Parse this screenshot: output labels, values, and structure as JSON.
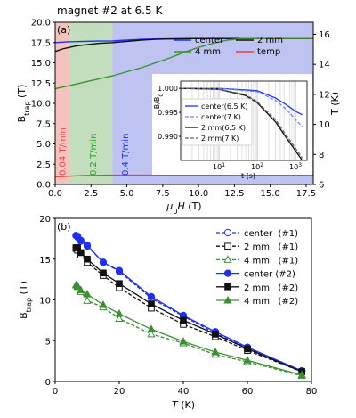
{
  "chart_data": [
    {
      "type": "line",
      "panel_label": "(a)",
      "title": "magnet #2 at 6.5 K",
      "xlabel": "μ0H (T)",
      "ylabel_left": "Btrap (T)",
      "ylabel_right": "T (K)",
      "xlim": [
        0,
        18
      ],
      "ylim_left": [
        0,
        20
      ],
      "ylim_right": [
        6,
        16.8
      ],
      "xticks": [
        "0.0",
        "2.5",
        "5.0",
        "7.5",
        "10.0",
        "12.5",
        "15.0",
        "17.5"
      ],
      "yticks_left": [
        "0.0",
        "2.5",
        "5.0",
        "7.5",
        "10.0",
        "12.5",
        "15.0",
        "17.5",
        "20.0"
      ],
      "yticks_right": [
        "6",
        "8",
        "10",
        "12",
        "14",
        "16"
      ],
      "rate_regions": [
        {
          "label": "0.04 T/min",
          "from": 0,
          "to": 1.0,
          "color": "#f3b9b3",
          "text_color": "#e8433a"
        },
        {
          "label": "0.2 T/min",
          "from": 1.0,
          "to": 4.0,
          "color": "#b7d8b0",
          "text_color": "#2ca02c"
        },
        {
          "label": "0.4 T/min",
          "from": 4.0,
          "to": 18,
          "color": "#b3b8ee",
          "text_color": "#1f2ff0"
        }
      ],
      "legend": [
        "center",
        "2 mm",
        "4 mm",
        "temp"
      ],
      "series": [
        {
          "name": "center",
          "color": "#1f2ff0",
          "x": [
            0,
            0.5,
            1,
            1.5,
            2,
            3,
            4,
            5,
            6,
            7,
            8,
            10,
            12,
            14,
            16,
            18
          ],
          "y": [
            17.5,
            17.55,
            17.6,
            17.62,
            17.65,
            17.68,
            17.7,
            17.8,
            17.9,
            17.95,
            17.98,
            18.0,
            18.0,
            18.0,
            18.0,
            18.0
          ]
        },
        {
          "name": "2 mm",
          "color": "#111111",
          "x": [
            0,
            0.5,
            1,
            1.5,
            2,
            3,
            4,
            5,
            6,
            7,
            8,
            10,
            12,
            14,
            16,
            18
          ],
          "y": [
            16.4,
            16.7,
            16.9,
            17.1,
            17.2,
            17.4,
            17.5,
            17.65,
            17.8,
            17.9,
            17.95,
            18.0,
            18.0,
            18.0,
            18.0,
            18.0
          ]
        },
        {
          "name": "4 mm",
          "color": "#3c8f32",
          "x": [
            0,
            0.5,
            1,
            1.5,
            2,
            3,
            4,
            5,
            6,
            7,
            8,
            9,
            10,
            11,
            12,
            13,
            14,
            16,
            18
          ],
          "y": [
            11.8,
            12.0,
            12.2,
            12.4,
            12.6,
            13.0,
            13.4,
            13.9,
            14.4,
            15.0,
            15.6,
            16.3,
            16.9,
            17.4,
            17.8,
            18.0,
            18.0,
            18.0,
            18.0
          ]
        },
        {
          "name": "temp",
          "color": "#e8433a",
          "axis": "right",
          "x": [
            0,
            1,
            2,
            4,
            6,
            8,
            10,
            12,
            14,
            16,
            18
          ],
          "y": [
            6.5,
            6.55,
            6.6,
            6.62,
            6.62,
            6.62,
            6.62,
            6.62,
            6.62,
            6.62,
            6.62
          ]
        }
      ],
      "inset": {
        "ylabel": "B/B0",
        "xlabel": "t (s)",
        "xscale": "log",
        "xlim": [
          1,
          2000
        ],
        "ylim": [
          0.985,
          1.0015
        ],
        "xticks": [
          "10^1",
          "10^2",
          "10^3"
        ],
        "yticks": [
          "0.990",
          "0.995",
          "1.000"
        ],
        "legend": [
          "center(6.5 K)",
          "center(7 K)",
          "2 mm(6.5 K)",
          "2 mm(7 K)"
        ],
        "series": [
          {
            "name": "center(6.5 K)",
            "color": "#1f2ff0",
            "dash": "",
            "x": [
              1,
              10,
              100,
              300,
              600,
              1000,
              1500
            ],
            "y": [
              1.0,
              1.0,
              0.9995,
              0.998,
              0.9965,
              0.9952,
              0.9945
            ]
          },
          {
            "name": "center(7 K)",
            "color": "#6b86e8",
            "dash": "4,2",
            "x": [
              1,
              10,
              100,
              300,
              600,
              1000,
              1500
            ],
            "y": [
              1.0,
              1.0,
              0.9993,
              0.9975,
              0.9955,
              0.9935,
              0.992
            ]
          },
          {
            "name": "2 mm(6.5 K)",
            "color": "#111111",
            "dash": "",
            "x": [
              1,
              10,
              50,
              100,
              300,
              600,
              1000,
              1500
            ],
            "y": [
              1.0,
              0.9998,
              0.9985,
              0.997,
              0.993,
              0.9895,
              0.987,
              0.985
            ]
          },
          {
            "name": "2 mm(7 K)",
            "color": "#666666",
            "dash": "4,2",
            "x": [
              1,
              10,
              50,
              100,
              300,
              600,
              1000,
              1500
            ],
            "y": [
              1.0,
              0.9998,
              0.9987,
              0.9972,
              0.9935,
              0.99,
              0.9875,
              0.9855
            ]
          }
        ]
      }
    },
    {
      "type": "line",
      "panel_label": "(b)",
      "xlabel": "T (K)",
      "ylabel": "Btrap (T)",
      "xlim": [
        0,
        80
      ],
      "ylim": [
        0,
        20
      ],
      "xticks": [
        "0",
        "20",
        "40",
        "60",
        "80"
      ],
      "yticks": [
        "0",
        "5",
        "10",
        "15",
        "20"
      ],
      "legend": [
        "center  (#1)",
        "2 mm   (#1)",
        "4 mm   (#1)",
        "center (#2)",
        "2 mm   (#2)",
        "4 mm   (#2)"
      ],
      "series": [
        {
          "name": "center  (#1)",
          "color": "#1f2ff0",
          "marker": "circle-open",
          "dash": "4,2",
          "x": [
            6.5,
            7,
            8,
            10,
            15,
            20,
            30,
            40,
            50,
            60,
            77
          ],
          "y": [
            17.9,
            17.7,
            17.2,
            16.6,
            14.6,
            13.5,
            10.2,
            8.0,
            5.9,
            4.1,
            1.3
          ]
        },
        {
          "name": "2 mm   (#1)",
          "color": "#111111",
          "marker": "square-open",
          "dash": "4,2",
          "x": [
            6.5,
            7,
            8,
            10,
            15,
            20,
            30,
            40,
            50,
            60,
            77
          ],
          "y": [
            16.3,
            16.1,
            15.5,
            14.6,
            13.0,
            11.5,
            9.0,
            7.0,
            5.5,
            3.8,
            1.2
          ]
        },
        {
          "name": "4 mm   (#1)",
          "color": "#3c8f32",
          "marker": "triangle-open",
          "dash": "4,2",
          "x": [
            6.5,
            7,
            8,
            10,
            15,
            20,
            30,
            40,
            50,
            60,
            77
          ],
          "y": [
            11.8,
            11.6,
            11.0,
            9.9,
            9.1,
            7.7,
            5.8,
            4.7,
            3.3,
            2.4,
            0.7
          ]
        },
        {
          "name": "center (#2)",
          "color": "#1f2ff0",
          "marker": "circle",
          "dash": "",
          "x": [
            6.5,
            7,
            8,
            10,
            15,
            20,
            30,
            40,
            50,
            60,
            77
          ],
          "y": [
            17.9,
            17.8,
            17.3,
            16.7,
            14.6,
            13.6,
            10.4,
            8.1,
            6.1,
            4.2,
            1.3
          ]
        },
        {
          "name": "2 mm   (#2)",
          "color": "#111111",
          "marker": "square",
          "dash": "",
          "x": [
            6.5,
            7,
            8,
            10,
            15,
            20,
            30,
            40,
            50,
            60,
            77
          ],
          "y": [
            16.4,
            16.4,
            15.8,
            15.0,
            13.3,
            12.0,
            9.5,
            7.5,
            5.8,
            4.0,
            1.2
          ]
        },
        {
          "name": "4 mm   (#2)",
          "color": "#3c8f32",
          "marker": "triangle",
          "dash": "",
          "x": [
            6.5,
            7,
            8,
            10,
            15,
            20,
            30,
            40,
            50,
            60,
            77
          ],
          "y": [
            11.8,
            11.7,
            11.2,
            10.7,
            9.4,
            8.3,
            6.4,
            4.9,
            3.6,
            2.6,
            0.8
          ]
        }
      ]
    }
  ]
}
